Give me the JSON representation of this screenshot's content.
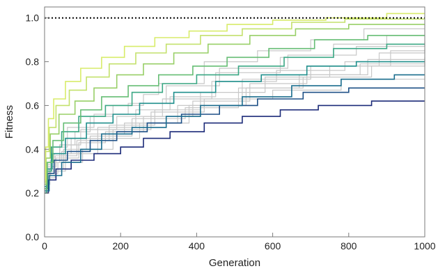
{
  "chart_data": {
    "type": "line",
    "title": "",
    "xlabel": "Generation",
    "ylabel": "Fitness",
    "xlim": [
      0,
      1000
    ],
    "ylim": [
      0.0,
      1.05
    ],
    "x_ticks": [
      0,
      200,
      400,
      600,
      800,
      1000
    ],
    "y_ticks": [
      0.0,
      0.2,
      0.4,
      0.6,
      0.8,
      1.0
    ],
    "x_tick_labels": [
      "0",
      "200",
      "400",
      "600",
      "800",
      "1000"
    ],
    "y_tick_labels": [
      "0.0",
      "0.2",
      "0.4",
      "0.6",
      "0.8",
      "1.0"
    ],
    "grid": false,
    "legend": "none",
    "reference_line": {
      "y": 1.0,
      "style": "dotted",
      "color": "#000000"
    },
    "colors": {
      "background_runs": "#c8c8c8",
      "gradient_low": "#1b2a78",
      "gradient_mid": "#1f8f8c",
      "gradient_high": "#d8ec6a",
      "frame": "#7a7a7a"
    },
    "series": [
      {
        "color": "#c8c8c8",
        "x": [
          0,
          4,
          16,
          40,
          80,
          120,
          180,
          260,
          300,
          420,
          560,
          700,
          840,
          1000
        ],
        "y": [
          0.2,
          0.28,
          0.35,
          0.42,
          0.48,
          0.55,
          0.6,
          0.65,
          0.7,
          0.8,
          0.85,
          0.9,
          0.95,
          0.95
        ]
      },
      {
        "color": "#c8c8c8",
        "x": [
          0,
          6,
          25,
          70,
          140,
          240,
          330,
          450,
          620,
          760,
          900,
          1000
        ],
        "y": [
          0.22,
          0.3,
          0.38,
          0.45,
          0.5,
          0.58,
          0.64,
          0.75,
          0.82,
          0.88,
          0.92,
          0.92
        ]
      },
      {
        "color": "#c8c8c8",
        "x": [
          0,
          12,
          50,
          110,
          210,
          350,
          520,
          700,
          880,
          1000
        ],
        "y": [
          0.24,
          0.31,
          0.4,
          0.47,
          0.52,
          0.6,
          0.72,
          0.78,
          0.84,
          0.86
        ]
      },
      {
        "color": "#c8c8c8",
        "x": [
          0,
          8,
          30,
          90,
          160,
          260,
          390,
          540,
          690,
          850,
          1000
        ],
        "y": [
          0.25,
          0.32,
          0.36,
          0.43,
          0.48,
          0.55,
          0.62,
          0.7,
          0.74,
          0.81,
          0.81
        ]
      },
      {
        "color": "#c8c8c8",
        "x": [
          0,
          10,
          35,
          100,
          180,
          280,
          420,
          600,
          780,
          1000
        ],
        "y": [
          0.21,
          0.29,
          0.34,
          0.4,
          0.49,
          0.57,
          0.63,
          0.67,
          0.72,
          0.72
        ]
      },
      {
        "color": "#c8c8c8",
        "x": [
          0,
          5,
          20,
          60,
          130,
          220,
          320,
          460,
          640,
          820,
          1000
        ],
        "y": [
          0.23,
          0.33,
          0.41,
          0.5,
          0.56,
          0.61,
          0.69,
          0.77,
          0.83,
          0.87,
          0.89
        ]
      },
      {
        "color": "#c8c8c8",
        "x": [
          0,
          15,
          45,
          120,
          230,
          370,
          510,
          670,
          830,
          1000
        ],
        "y": [
          0.26,
          0.35,
          0.39,
          0.46,
          0.54,
          0.59,
          0.68,
          0.74,
          0.79,
          0.8
        ]
      },
      {
        "color": "#c8c8c8",
        "x": [
          0,
          7,
          28,
          85,
          170,
          290,
          410,
          580,
          750,
          910,
          1000
        ],
        "y": [
          0.2,
          0.27,
          0.37,
          0.44,
          0.51,
          0.58,
          0.66,
          0.73,
          0.78,
          0.85,
          0.85
        ]
      },
      {
        "color": "#c8c8c8",
        "x": [
          0,
          9,
          40,
          95,
          190,
          310,
          440,
          610,
          790,
          1000
        ],
        "y": [
          0.22,
          0.34,
          0.42,
          0.49,
          0.55,
          0.63,
          0.71,
          0.76,
          0.8,
          0.82
        ]
      },
      {
        "color": "#c8c8c8",
        "x": [
          0,
          14,
          55,
          140,
          250,
          380,
          530,
          680,
          860,
          1000
        ],
        "y": [
          0.24,
          0.3,
          0.38,
          0.45,
          0.52,
          0.6,
          0.68,
          0.73,
          0.78,
          0.79
        ]
      },
      {
        "color": "#1b2a78",
        "x": [
          0,
          10,
          30,
          70,
          130,
          200,
          260,
          330,
          420,
          520,
          620,
          720,
          860,
          1000
        ],
        "y": [
          0.2,
          0.26,
          0.31,
          0.35,
          0.38,
          0.41,
          0.45,
          0.48,
          0.52,
          0.55,
          0.58,
          0.6,
          0.62,
          0.62
        ]
      },
      {
        "color": "#1d4f86",
        "x": [
          0,
          8,
          25,
          60,
          120,
          190,
          270,
          360,
          460,
          560,
          680,
          800,
          1000
        ],
        "y": [
          0.22,
          0.29,
          0.35,
          0.39,
          0.44,
          0.48,
          0.52,
          0.56,
          0.6,
          0.63,
          0.66,
          0.68,
          0.68
        ]
      },
      {
        "color": "#1a6d8d",
        "x": [
          0,
          12,
          45,
          95,
          150,
          230,
          320,
          410,
          520,
          650,
          780,
          920,
          1000
        ],
        "y": [
          0.21,
          0.28,
          0.34,
          0.4,
          0.47,
          0.5,
          0.55,
          0.6,
          0.64,
          0.69,
          0.72,
          0.74,
          0.74
        ]
      },
      {
        "color": "#1f8f8c",
        "x": [
          0,
          6,
          20,
          55,
          110,
          180,
          250,
          340,
          450,
          570,
          690,
          820,
          1000
        ],
        "y": [
          0.23,
          0.31,
          0.38,
          0.45,
          0.52,
          0.56,
          0.61,
          0.66,
          0.71,
          0.74,
          0.78,
          0.8,
          0.8
        ]
      },
      {
        "color": "#3aa784",
        "x": [
          0,
          5,
          18,
          45,
          90,
          160,
          230,
          310,
          400,
          510,
          630,
          760,
          900,
          1000
        ],
        "y": [
          0.2,
          0.3,
          0.41,
          0.48,
          0.55,
          0.6,
          0.66,
          0.7,
          0.74,
          0.78,
          0.82,
          0.86,
          0.88,
          0.88
        ]
      },
      {
        "color": "#66bd74",
        "x": [
          0,
          7,
          22,
          50,
          95,
          150,
          220,
          300,
          390,
          480,
          590,
          710,
          850,
          1000
        ],
        "y": [
          0.22,
          0.34,
          0.44,
          0.52,
          0.58,
          0.64,
          0.69,
          0.74,
          0.78,
          0.82,
          0.86,
          0.9,
          0.92,
          0.92
        ]
      },
      {
        "color": "#98cf67",
        "x": [
          0,
          4,
          15,
          38,
          80,
          130,
          190,
          260,
          340,
          430,
          540,
          660,
          800,
          1000
        ],
        "y": [
          0.24,
          0.36,
          0.47,
          0.56,
          0.62,
          0.68,
          0.74,
          0.79,
          0.84,
          0.88,
          0.92,
          0.95,
          0.97,
          0.97
        ]
      },
      {
        "color": "#c4e16c",
        "x": [
          0,
          3,
          12,
          30,
          65,
          110,
          170,
          240,
          320,
          410,
          520,
          650,
          790,
          1000
        ],
        "y": [
          0.25,
          0.39,
          0.5,
          0.6,
          0.67,
          0.73,
          0.79,
          0.84,
          0.88,
          0.92,
          0.95,
          0.98,
          0.995,
          0.995
        ]
      },
      {
        "color": "#d8ec6a",
        "x": [
          0,
          3,
          10,
          24,
          55,
          95,
          150,
          210,
          290,
          380,
          480,
          600,
          740,
          900,
          1000
        ],
        "y": [
          0.26,
          0.41,
          0.54,
          0.63,
          0.71,
          0.77,
          0.82,
          0.87,
          0.91,
          0.94,
          0.97,
          0.99,
          1.0,
          1.02,
          1.02
        ]
      }
    ]
  }
}
